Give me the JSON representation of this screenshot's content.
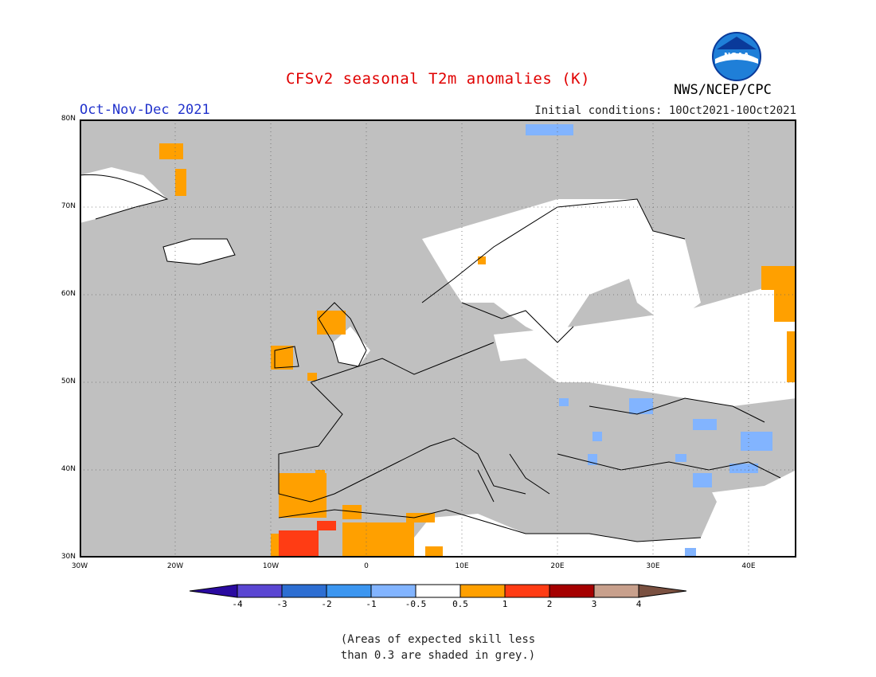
{
  "header": {
    "title": "CFSv2 seasonal T2m anomalies (K)",
    "season": "Oct-Nov-Dec 2021",
    "initial_conditions": "Initial conditions: 10Oct2021-10Oct2021",
    "agency": "NWS/NCEP/CPC",
    "logo_text": "NOAA",
    "logo_icon": "noaa-logo-icon"
  },
  "map": {
    "lat_labels": [
      "80N",
      "70N",
      "60N",
      "50N",
      "40N",
      "30N"
    ],
    "lon_labels": [
      "30W",
      "20W",
      "10W",
      "0",
      "10E",
      "20E",
      "30E",
      "40E"
    ],
    "lon_range": [
      -30,
      45
    ],
    "lat_range": [
      30,
      80
    ],
    "grid": true,
    "colors": {
      "ocean_grey": "#c0c0c0",
      "land_white": "#ffffff",
      "plus_05_1": "#ffa000",
      "plus_1_2": "#ff3c14",
      "plus_2_3": "#a50000",
      "minus_05_1": "#82b4ff",
      "minus_1_2": "#3c96f0"
    }
  },
  "colorbar": {
    "labels": [
      "-4",
      "-3",
      "-2",
      "-1",
      "-0.5",
      "0.5",
      "1",
      "2",
      "3",
      "4"
    ],
    "colors": [
      "#2a0aa0",
      "#5a46d2",
      "#2d6ed2",
      "#3c96f0",
      "#82b4ff",
      "#ffffff",
      "#ffa000",
      "#ff3c14",
      "#a50000",
      "#c8a08c",
      "#7a5040"
    ]
  },
  "note": {
    "line1": "(Areas of expected skill less",
    "line2": "than 0.3 are shaded in grey.)"
  }
}
